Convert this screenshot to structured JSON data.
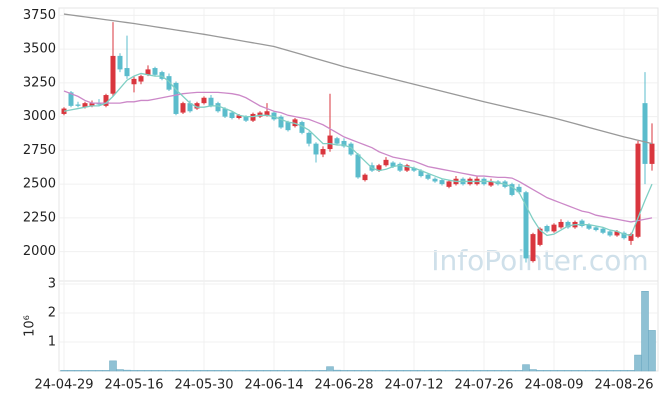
{
  "chart_data": {
    "type": "candlestick",
    "categories": [
      "24-04-29",
      null,
      null,
      null,
      null,
      null,
      null,
      null,
      null,
      null,
      "24-05-16",
      null,
      null,
      null,
      null,
      null,
      null,
      null,
      null,
      null,
      "24-05-30",
      null,
      null,
      null,
      null,
      null,
      null,
      null,
      null,
      null,
      "24-06-14",
      null,
      null,
      null,
      null,
      null,
      null,
      null,
      null,
      null,
      "24-06-28",
      null,
      null,
      null,
      null,
      null,
      null,
      null,
      null,
      null,
      "24-07-12",
      null,
      null,
      null,
      null,
      null,
      null,
      null,
      null,
      null,
      "24-07-26",
      null,
      null,
      null,
      null,
      null,
      null,
      null,
      null,
      null,
      "24-08-09",
      null,
      null,
      null,
      null,
      null,
      null,
      null,
      null,
      null,
      "24-08-26",
      null,
      null,
      null,
      null
    ],
    "ohlc": [
      [
        3020,
        3070,
        3010,
        3060
      ],
      [
        3180,
        3190,
        3070,
        3080
      ],
      [
        3090,
        3110,
        3070,
        3080
      ],
      [
        3070,
        3110,
        3060,
        3100
      ],
      [
        3080,
        3120,
        3070,
        3100
      ],
      [
        3100,
        3130,
        3080,
        3090
      ],
      [
        3080,
        3170,
        3070,
        3160
      ],
      [
        3170,
        3700,
        3150,
        3450
      ],
      [
        3450,
        3470,
        3330,
        3350
      ],
      [
        3360,
        3600,
        3280,
        3300
      ],
      [
        3240,
        3300,
        3180,
        3280
      ],
      [
        3260,
        3310,
        3240,
        3300
      ],
      [
        3310,
        3380,
        3300,
        3350
      ],
      [
        3360,
        3370,
        3300,
        3310
      ],
      [
        3330,
        3340,
        3270,
        3280
      ],
      [
        3300,
        3320,
        3190,
        3200
      ],
      [
        3250,
        3260,
        3010,
        3020
      ],
      [
        3030,
        3110,
        3020,
        3100
      ],
      [
        3100,
        3120,
        3030,
        3040
      ],
      [
        3060,
        3110,
        3050,
        3100
      ],
      [
        3100,
        3150,
        3090,
        3140
      ],
      [
        3140,
        3160,
        3070,
        3080
      ],
      [
        3100,
        3110,
        3030,
        3040
      ],
      [
        3060,
        3070,
        2990,
        3000
      ],
      [
        3030,
        3040,
        2980,
        2990
      ],
      [
        2990,
        3020,
        2980,
        3010
      ],
      [
        3000,
        3010,
        2960,
        2970
      ],
      [
        2970,
        3030,
        2960,
        3020
      ],
      [
        3000,
        3040,
        2990,
        3030
      ],
      [
        3010,
        3100,
        3000,
        3040
      ],
      [
        3030,
        3040,
        2970,
        2980
      ],
      [
        3000,
        3010,
        2910,
        2920
      ],
      [
        2960,
        2970,
        2890,
        2900
      ],
      [
        2930,
        2990,
        2920,
        2980
      ],
      [
        2960,
        2970,
        2870,
        2880
      ],
      [
        2880,
        2890,
        2780,
        2800
      ],
      [
        2800,
        2810,
        2660,
        2720
      ],
      [
        2720,
        2780,
        2700,
        2760
      ],
      [
        2760,
        3170,
        2740,
        2860
      ],
      [
        2840,
        2850,
        2790,
        2800
      ],
      [
        2820,
        2840,
        2770,
        2780
      ],
      [
        2800,
        2810,
        2710,
        2720
      ],
      [
        2720,
        2730,
        2540,
        2550
      ],
      [
        2530,
        2580,
        2520,
        2570
      ],
      [
        2640,
        2660,
        2590,
        2600
      ],
      [
        2600,
        2650,
        2590,
        2640
      ],
      [
        2640,
        2700,
        2630,
        2680
      ],
      [
        2660,
        2670,
        2620,
        2630
      ],
      [
        2650,
        2660,
        2590,
        2600
      ],
      [
        2600,
        2650,
        2590,
        2640
      ],
      [
        2620,
        2630,
        2590,
        2600
      ],
      [
        2600,
        2610,
        2550,
        2560
      ],
      [
        2570,
        2580,
        2530,
        2540
      ],
      [
        2540,
        2550,
        2510,
        2520
      ],
      [
        2530,
        2540,
        2490,
        2500
      ],
      [
        2480,
        2530,
        2470,
        2520
      ],
      [
        2500,
        2560,
        2490,
        2540
      ],
      [
        2540,
        2550,
        2490,
        2500
      ],
      [
        2500,
        2550,
        2490,
        2540
      ],
      [
        2500,
        2560,
        2490,
        2540
      ],
      [
        2540,
        2550,
        2490,
        2500
      ],
      [
        2490,
        2540,
        2480,
        2520
      ],
      [
        2520,
        2530,
        2490,
        2500
      ],
      [
        2520,
        2530,
        2470,
        2480
      ],
      [
        2500,
        2510,
        2410,
        2420
      ],
      [
        2480,
        2500,
        2430,
        2440
      ],
      [
        2440,
        2450,
        1920,
        1950
      ],
      [
        1930,
        2140,
        1920,
        2130
      ],
      [
        2050,
        2180,
        2040,
        2170
      ],
      [
        2190,
        2200,
        2140,
        2150
      ],
      [
        2150,
        2210,
        2140,
        2200
      ],
      [
        2180,
        2240,
        2170,
        2220
      ],
      [
        2220,
        2230,
        2170,
        2180
      ],
      [
        2180,
        2230,
        2170,
        2220
      ],
      [
        2230,
        2240,
        2180,
        2190
      ],
      [
        2200,
        2210,
        2160,
        2170
      ],
      [
        2180,
        2190,
        2150,
        2160
      ],
      [
        2170,
        2180,
        2130,
        2140
      ],
      [
        2150,
        2160,
        2110,
        2120
      ],
      [
        2120,
        2160,
        2110,
        2150
      ],
      [
        2140,
        2150,
        2090,
        2100
      ],
      [
        2080,
        2140,
        2050,
        2130
      ],
      [
        2110,
        2820,
        2100,
        2800
      ],
      [
        3100,
        3330,
        2500,
        2650
      ],
      [
        2650,
        2950,
        2600,
        2800
      ]
    ],
    "up_color": "#d9363e",
    "down_color": "#5bbccc",
    "series": [
      {
        "color": "#999999",
        "values": [
          3760,
          3753,
          3746,
          3739,
          3732,
          3725,
          3718,
          3711,
          3704,
          3697,
          3690,
          3682,
          3674,
          3666,
          3658,
          3650,
          3642,
          3634,
          3626,
          3618,
          3610,
          3601,
          3592,
          3583,
          3574,
          3565,
          3556,
          3547,
          3538,
          3529,
          3520,
          3505,
          3490,
          3475,
          3460,
          3445,
          3430,
          3415,
          3400,
          3385,
          3370,
          3357,
          3344,
          3331,
          3318,
          3305,
          3292,
          3279,
          3266,
          3253,
          3240,
          3227,
          3214,
          3201,
          3188,
          3175,
          3162,
          3149,
          3136,
          3123,
          3110,
          3098,
          3086,
          3074,
          3062,
          3050,
          3038,
          3026,
          3014,
          3002,
          2990,
          2976,
          2962,
          2948,
          2934,
          2920,
          2906,
          2892,
          2878,
          2864,
          2850,
          2838,
          2825,
          2813,
          2800
        ]
      },
      {
        "color": "#cc88c8",
        "values": [
          3190,
          3170,
          3150,
          3120,
          3100,
          3100,
          3100,
          3100,
          3100,
          3110,
          3110,
          3120,
          3120,
          3130,
          3140,
          3150,
          3160,
          3170,
          3175,
          3180,
          3180,
          3180,
          3180,
          3175,
          3170,
          3160,
          3140,
          3110,
          3080,
          3060,
          3040,
          3030,
          3010,
          3000,
          2990,
          2980,
          2960,
          2940,
          2910,
          2880,
          2850,
          2830,
          2810,
          2790,
          2770,
          2740,
          2720,
          2700,
          2690,
          2680,
          2670,
          2650,
          2630,
          2620,
          2610,
          2600,
          2590,
          2580,
          2570,
          2560,
          2560,
          2555,
          2550,
          2550,
          2545,
          2520,
          2490,
          2460,
          2430,
          2400,
          2380,
          2360,
          2340,
          2320,
          2300,
          2290,
          2270,
          2260,
          2250,
          2240,
          2230,
          2220,
          2230,
          2240,
          2250
        ]
      },
      {
        "color": "#7fcfc4",
        "values": [
          3040,
          3050,
          3060,
          3070,
          3080,
          3080,
          3100,
          3150,
          3210,
          3270,
          3300,
          3320,
          3310,
          3300,
          3300,
          3260,
          3200,
          3150,
          3100,
          3070,
          3070,
          3080,
          3080,
          3060,
          3040,
          3010,
          3000,
          3000,
          3010,
          3010,
          3000,
          2980,
          2960,
          2950,
          2930,
          2900,
          2850,
          2800,
          2800,
          2790,
          2790,
          2770,
          2720,
          2670,
          2620,
          2600,
          2610,
          2630,
          2640,
          2630,
          2620,
          2600,
          2580,
          2560,
          2540,
          2530,
          2520,
          2520,
          2520,
          2520,
          2520,
          2520,
          2510,
          2500,
          2480,
          2440,
          2340,
          2240,
          2160,
          2120,
          2130,
          2160,
          2190,
          2200,
          2200,
          2200,
          2190,
          2180,
          2160,
          2150,
          2130,
          2120,
          2250,
          2380,
          2500
        ]
      }
    ],
    "ylim": [
      1790,
      3790
    ],
    "yticks": [
      2000,
      2250,
      2500,
      2750,
      3000,
      3250,
      3500,
      3750
    ],
    "grid": true,
    "volume": {
      "color": "#8fc1d4",
      "ylim": [
        0,
        3
      ],
      "yticks": [
        1,
        2,
        3
      ],
      "unit_label": "10⁶",
      "values": [
        0.02,
        0.02,
        0.02,
        0.02,
        0.02,
        0.02,
        0.02,
        0.35,
        0.05,
        0.03,
        0.02,
        0.02,
        0.02,
        0.02,
        0.02,
        0.02,
        0.02,
        0.02,
        0.02,
        0.02,
        0.02,
        0.02,
        0.02,
        0.02,
        0.02,
        0.02,
        0.02,
        0.02,
        0.02,
        0.02,
        0.02,
        0.02,
        0.02,
        0.02,
        0.02,
        0.02,
        0.02,
        0.02,
        0.15,
        0.03,
        0.02,
        0.02,
        0.02,
        0.02,
        0.02,
        0.02,
        0.02,
        0.02,
        0.02,
        0.02,
        0.02,
        0.02,
        0.02,
        0.02,
        0.02,
        0.02,
        0.02,
        0.02,
        0.02,
        0.02,
        0.02,
        0.02,
        0.02,
        0.02,
        0.02,
        0.02,
        0.22,
        0.05,
        0.02,
        0.02,
        0.02,
        0.02,
        0.02,
        0.02,
        0.02,
        0.02,
        0.02,
        0.02,
        0.02,
        0.02,
        0.02,
        0.02,
        0.55,
        2.75,
        1.4
      ]
    },
    "watermark": "InfoPointer.com"
  }
}
